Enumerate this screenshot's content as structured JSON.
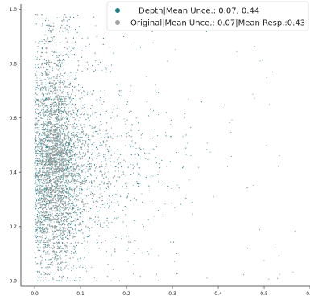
{
  "chart_data": {
    "type": "scatter",
    "title": "",
    "xlabel": "",
    "ylabel": "",
    "xlim": [
      -0.03,
      0.6
    ],
    "ylim": [
      -0.02,
      1.02
    ],
    "x_ticks": [
      0.0,
      0.1,
      0.2,
      0.3,
      0.4,
      0.5,
      0.6
    ],
    "x_tick_labels": [
      "0.0",
      "0.1",
      "0.2",
      "0.3",
      "0.4",
      "0.5",
      "0.6"
    ],
    "y_ticks": [
      0.0,
      0.2,
      0.4,
      0.6,
      0.8,
      1.0
    ],
    "y_tick_labels": [
      "0.0",
      "0.2",
      "0.4",
      "0.6",
      "0.8",
      "1.0"
    ],
    "grid": false,
    "legend_position": "top-right",
    "series": [
      {
        "name": "Depth|Mean Unce.: 0.07, 0.44",
        "color": "#1f7f86",
        "description_stats": {
          "mean_x": 0.07,
          "mean_y": 0.44
        }
      },
      {
        "name": "Original|Mean Unce.: 0.07|Mean Resp.:0.43",
        "color": "#a3a3a3",
        "description_stats": {
          "mean_x": 0.07,
          "mean_y": 0.43
        }
      }
    ]
  }
}
